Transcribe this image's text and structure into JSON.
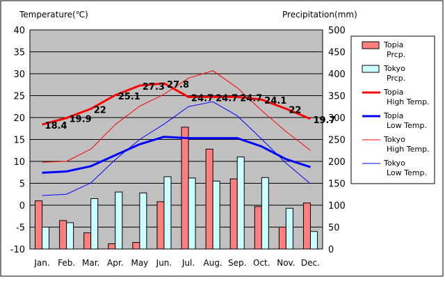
{
  "chart_data": {
    "type": "bar",
    "left_axis_label": "Temperature(℃)",
    "right_axis_label": "Precipitation(mm)",
    "categories": [
      "Jan.",
      "Feb.",
      "Mar.",
      "Apr.",
      "May",
      "Jun.",
      "Jul.",
      "Aug.",
      "Sep.",
      "Oct.",
      "Nov.",
      "Dec."
    ],
    "left_axis": {
      "range": [
        -10,
        40
      ],
      "ticks": [
        -10,
        -5,
        0,
        5,
        10,
        15,
        20,
        25,
        30,
        35,
        40
      ]
    },
    "right_axis": {
      "range": [
        0,
        500
      ],
      "ticks": [
        0,
        50,
        100,
        150,
        200,
        250,
        300,
        350,
        400,
        450,
        500
      ]
    },
    "grid": true,
    "plot_background": "#c0c0c0",
    "legend_position": "right",
    "bar_series": [
      {
        "name": "Topia Prcp.",
        "color": "#ff7f7f",
        "axis": "right",
        "values": [
          110,
          65,
          37,
          12,
          15,
          108,
          278,
          228,
          160,
          97,
          50,
          105
        ]
      },
      {
        "name": "Tokyo Prcp.",
        "color": "#ccffff",
        "axis": "right",
        "values": [
          50,
          60,
          115,
          130,
          128,
          165,
          162,
          155,
          210,
          163,
          93,
          40
        ]
      }
    ],
    "line_series": [
      {
        "name": "Topia High Temp.",
        "color": "#ff0000",
        "width": "thick",
        "axis": "left",
        "values": [
          18.4,
          19.9,
          22.0,
          25.1,
          27.3,
          27.8,
          24.7,
          24.7,
          24.7,
          24.1,
          22.0,
          19.7
        ]
      },
      {
        "name": "Topia Low Temp.",
        "color": "#0000ff",
        "width": "thick",
        "axis": "left",
        "values": [
          7.4,
          7.7,
          8.9,
          11.4,
          13.9,
          15.6,
          15.3,
          15.3,
          15.3,
          13.4,
          10.5,
          8.7
        ]
      },
      {
        "name": "Tokyo High Temp.",
        "color": "#ff0000",
        "width": "thin",
        "axis": "left",
        "values": [
          9.8,
          10.0,
          12.8,
          18.4,
          22.6,
          25.3,
          29.0,
          30.7,
          26.8,
          21.6,
          16.8,
          12.5
        ]
      },
      {
        "name": "Tokyo Low Temp.",
        "color": "#0000ff",
        "width": "thin",
        "axis": "left",
        "values": [
          2.2,
          2.5,
          5.1,
          10.4,
          15.0,
          18.5,
          22.5,
          23.6,
          20.4,
          15.1,
          9.6,
          4.9
        ]
      }
    ],
    "data_labels": [
      "18.4",
      "19.9",
      "22",
      "25.1",
      "27.3",
      "27.8",
      "24.7",
      "24.7",
      "24.7",
      "24.1",
      "22",
      "19.7"
    ],
    "legend": [
      {
        "line1": "Topia",
        "line2": "Prcp.",
        "kind": "bar",
        "color": "#ff7f7f"
      },
      {
        "line1": "Tokyo",
        "line2": "Prcp.",
        "kind": "bar",
        "color": "#ccffff"
      },
      {
        "line1": "Topia",
        "line2": "High Temp.",
        "kind": "thick-line",
        "color": "#ff0000"
      },
      {
        "line1": "Topia",
        "line2": "Low Temp.",
        "kind": "thick-line",
        "color": "#0000ff"
      },
      {
        "line1": "Tokyo",
        "line2": "High Temp.",
        "kind": "thin-line",
        "color": "#ff0000"
      },
      {
        "line1": "Tokyo",
        "line2": "Low Temp.",
        "kind": "thin-line",
        "color": "#0000ff"
      }
    ]
  }
}
